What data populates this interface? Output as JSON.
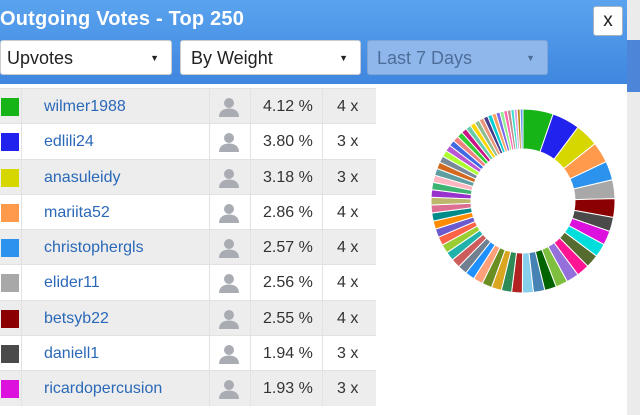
{
  "dialog": {
    "title": "Outgoing Votes - Top 250",
    "close_label": "x"
  },
  "filters": {
    "type_label": "Upvotes",
    "sort_label": "By Weight",
    "period_label": "Last 7 Days"
  },
  "voters": [
    {
      "name": "wilmer1988",
      "percent": "4.12 %",
      "count": "4 x",
      "color": "#17b417"
    },
    {
      "name": "edlili24",
      "percent": "3.80 %",
      "count": "3 x",
      "color": "#2222ee"
    },
    {
      "name": "anasuleidy",
      "percent": "3.18 %",
      "count": "3 x",
      "color": "#d6d600"
    },
    {
      "name": "mariita52",
      "percent": "2.86 %",
      "count": "4 x",
      "color": "#ff9a4d"
    },
    {
      "name": "christophergls",
      "percent": "2.57 %",
      "count": "4 x",
      "color": "#2b93ee"
    },
    {
      "name": "elider11",
      "percent": "2.56 %",
      "count": "4 x",
      "color": "#a8a8a8"
    },
    {
      "name": "betsyb22",
      "percent": "2.55 %",
      "count": "4 x",
      "color": "#8b0000"
    },
    {
      "name": "daniell1",
      "percent": "1.94 %",
      "count": "3 x",
      "color": "#4a4a4a"
    },
    {
      "name": "ricardopercusion",
      "percent": "1.93 %",
      "count": "3 x",
      "color": "#dd11dd"
    }
  ],
  "chart_data": {
    "type": "pie",
    "donut": true,
    "values": [
      4.12,
      3.8,
      3.18,
      2.86,
      2.57,
      2.56,
      2.55,
      1.94,
      1.93,
      1.85,
      1.8,
      1.75,
      1.7,
      1.65,
      1.6,
      1.55,
      1.5,
      1.45,
      1.4,
      1.38,
      1.35,
      1.32,
      1.3,
      1.28,
      1.25,
      1.22,
      1.2,
      1.18,
      1.15,
      1.12,
      1.1,
      1.08,
      1.05,
      1.02,
      1.0,
      0.98,
      0.95,
      0.92,
      0.9,
      0.88,
      0.85,
      0.82,
      0.8,
      0.78,
      0.75,
      0.72,
      0.7,
      0.68,
      0.65,
      0.62,
      0.6,
      0.58,
      0.55,
      0.52,
      0.5,
      0.48,
      0.45,
      0.42,
      0.4,
      0.38
    ],
    "colors": [
      "#17b417",
      "#2222ee",
      "#d6d600",
      "#ff9a4d",
      "#2b93ee",
      "#a8a8a8",
      "#8b0000",
      "#4a4a4a",
      "#dd11dd",
      "#00dddd",
      "#556b2f",
      "#ff1493",
      "#9370db",
      "#7fbf3f",
      "#006400",
      "#4682b4",
      "#87ceeb",
      "#b22222",
      "#2e8b57",
      "#daa520",
      "#6b8e23",
      "#ffa07a",
      "#1e90ff",
      "#708090",
      "#cd5c5c",
      "#20b2aa",
      "#9acd32",
      "#ff6347",
      "#6a5acd",
      "#ff8c00",
      "#008b8b",
      "#db7093",
      "#bdb76b",
      "#9932cc",
      "#3cb371",
      "#ffb6c1",
      "#5f9ea0",
      "#d2691e",
      "#778899",
      "#adff2f",
      "#ba55d3",
      "#4169e1",
      "#f08080",
      "#32cd32",
      "#c71585",
      "#66cdaa",
      "#ffd700",
      "#8fbc8f",
      "#e9967a",
      "#483d8b",
      "#00ced1",
      "#f4a460",
      "#7b68ee",
      "#90ee90",
      "#ff69b4",
      "#bc8f8f",
      "#40e0d0",
      "#dda0dd",
      "#b8860b",
      "#6495ed"
    ]
  }
}
